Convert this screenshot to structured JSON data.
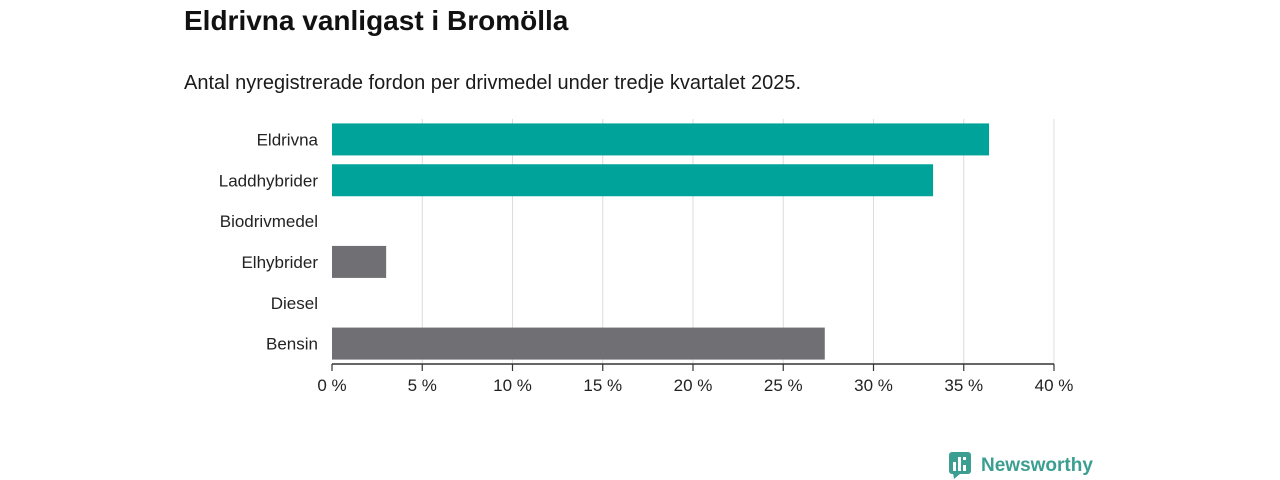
{
  "chart_data": {
    "type": "bar",
    "title": "Eldrivna vanligast i Bromölla",
    "subtitle": "Antal nyregistrerade fordon per drivmedel under tredje kvartalet 2025.",
    "categories": [
      "Eldrivna",
      "Laddhybrider",
      "Biodrivmedel",
      "Elhybrider",
      "Diesel",
      "Bensin"
    ],
    "values": [
      36.4,
      33.3,
      0,
      3.0,
      0,
      27.3
    ],
    "xlabel": "",
    "ylabel": "",
    "xlim": [
      0,
      40
    ],
    "xticks": [
      0,
      5,
      10,
      15,
      20,
      25,
      30,
      35,
      40
    ],
    "xtick_labels": [
      "0 %",
      "5 %",
      "10 %",
      "15 %",
      "20 %",
      "25 %",
      "30 %",
      "35 %",
      "40 %"
    ],
    "grid": true,
    "bar_colors": [
      "#00a39a",
      "#00a39a",
      "#6f6f74",
      "#6f6f74",
      "#6f6f74",
      "#6f6f74"
    ]
  },
  "branding": {
    "logo_text": "Newsworthy",
    "logo_icon": "newsworthy-chart-bubble-icon",
    "color": "#3b9e91"
  }
}
